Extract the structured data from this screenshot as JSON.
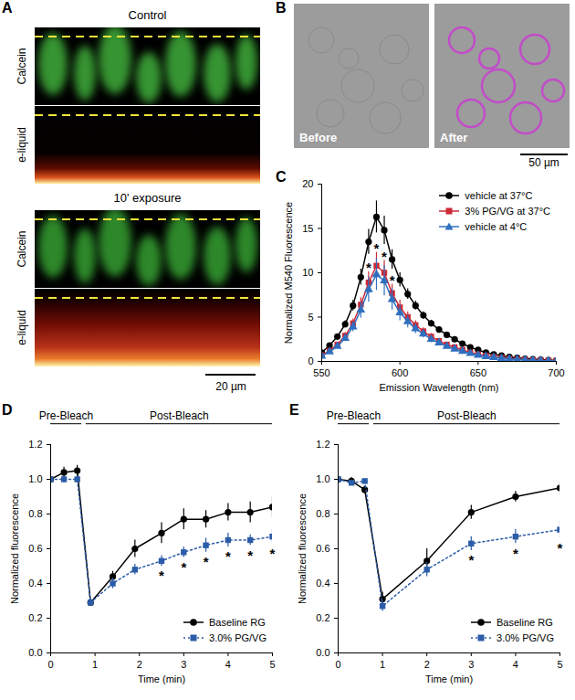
{
  "chart_data": [
    {
      "panel": "C",
      "type": "line",
      "x_label": "Emission Wavelength (nm)",
      "y_label": "Normalized M540 Fluorescence",
      "x": [
        550,
        555,
        560,
        565,
        570,
        575,
        580,
        585,
        590,
        595,
        600,
        605,
        610,
        615,
        620,
        625,
        630,
        635,
        640,
        645,
        650,
        655,
        660,
        665,
        670,
        675,
        680,
        685,
        690,
        695,
        700
      ],
      "xlim": [
        550,
        700
      ],
      "xticks": [
        550,
        600,
        650,
        700
      ],
      "ylim": [
        0,
        20
      ],
      "yticks": [
        0,
        5,
        10,
        15,
        20
      ],
      "legend": "top-right",
      "series": [
        {
          "name": "vehicle at 37°C",
          "color": "#000000",
          "marker": "circle",
          "line_style": "solid",
          "values": [
            1.0,
            1.8,
            2.8,
            4.2,
            6.3,
            9.5,
            13.5,
            16.3,
            14.8,
            11.5,
            9.2,
            7.6,
            6.3,
            5.2,
            4.3,
            3.6,
            3.0,
            2.5,
            2.0,
            1.6,
            1.3,
            1.0,
            0.8,
            0.65,
            0.5,
            0.4,
            0.3,
            0.25,
            0.2,
            0.15,
            0.1
          ],
          "errors": [
            0.15,
            0.2,
            0.3,
            0.4,
            0.6,
            0.9,
            1.4,
            1.8,
            1.6,
            1.1,
            0.8,
            0.6,
            0.5,
            0.4,
            0.35,
            0.3,
            0.25,
            0.2,
            0.2,
            0.15,
            0.12,
            0.1,
            0.1,
            0.08,
            0.07,
            0.06,
            0.05,
            0.05,
            0.04,
            0.04,
            0.03
          ]
        },
        {
          "name": "3% PG/VG at 37°C",
          "color": "#cc2936",
          "marker": "square",
          "line_style": "solid",
          "values": [
            0.7,
            1.2,
            1.9,
            2.9,
            4.3,
            6.4,
            8.9,
            10.8,
            10.0,
            7.7,
            6.1,
            5.0,
            4.1,
            3.4,
            2.8,
            2.3,
            1.9,
            1.6,
            1.3,
            1.0,
            0.8,
            0.65,
            0.5,
            0.4,
            0.3,
            0.25,
            0.2,
            0.15,
            0.12,
            0.1,
            0.08
          ],
          "errors": [
            0.1,
            0.15,
            0.25,
            0.35,
            0.5,
            0.8,
            1.2,
            1.5,
            1.4,
            1.0,
            0.8,
            0.6,
            0.5,
            0.4,
            0.35,
            0.3,
            0.25,
            0.2,
            0.18,
            0.15,
            0.12,
            0.1,
            0.08,
            0.07,
            0.06,
            0.05,
            0.04,
            0.04,
            0.03,
            0.03,
            0.03
          ],
          "annotations": [
            {
              "x": 580,
              "text": "*"
            },
            {
              "x": 585,
              "text": "*"
            },
            {
              "x": 590,
              "text": "*"
            },
            {
              "x": 595,
              "text": "*"
            }
          ]
        },
        {
          "name": "vehicle at 4°C",
          "color": "#2f6fbf",
          "marker": "triangle",
          "line_style": "solid",
          "values": [
            0.6,
            1.1,
            1.7,
            2.6,
            3.9,
            5.8,
            8.1,
            9.8,
            9.1,
            7.0,
            5.5,
            4.5,
            3.7,
            3.1,
            2.5,
            2.1,
            1.7,
            1.4,
            1.15,
            0.9,
            0.7,
            0.55,
            0.45,
            0.35,
            0.28,
            0.22,
            0.18,
            0.14,
            0.1,
            0.08,
            0.06
          ],
          "errors": [
            0.1,
            0.15,
            0.25,
            0.35,
            0.55,
            0.9,
            1.4,
            1.8,
            1.7,
            1.2,
            0.9,
            0.7,
            0.55,
            0.45,
            0.38,
            0.3,
            0.25,
            0.2,
            0.18,
            0.15,
            0.12,
            0.1,
            0.08,
            0.07,
            0.06,
            0.05,
            0.04,
            0.04,
            0.03,
            0.03,
            0.03
          ]
        }
      ]
    },
    {
      "panel": "D",
      "type": "line",
      "x_label": "Time (min)",
      "y_label": "Normalized fluorescence",
      "phases": [
        {
          "label": "Pre-Bleach",
          "start": 0,
          "end": 0.7
        },
        {
          "label": "Post-Bleach",
          "start": 0.8,
          "end": 5
        }
      ],
      "x": [
        0,
        0.3,
        0.6,
        0.9,
        1.4,
        1.9,
        2.5,
        3,
        3.5,
        4,
        4.5,
        5
      ],
      "xlim": [
        0,
        5
      ],
      "xticks": [
        0,
        1,
        2,
        3,
        4,
        5
      ],
      "ylim": [
        0,
        1.2
      ],
      "yticks": [
        {
          "value": 0,
          "label": "0.0"
        },
        0.2,
        0.4,
        0.6,
        0.8,
        {
          "value": 1,
          "label": "1.0"
        },
        1.2
      ],
      "legend": "bottom-right",
      "series": [
        {
          "name": "Baseline RG",
          "color": "#000000",
          "marker": "circle",
          "line_style": "solid",
          "values": [
            1.0,
            1.04,
            1.05,
            0.29,
            0.44,
            0.6,
            0.69,
            0.77,
            0.77,
            0.81,
            0.81,
            0.84
          ],
          "errors": [
            0.01,
            0.03,
            0.03,
            0.02,
            0.03,
            0.05,
            0.06,
            0.06,
            0.05,
            0.05,
            0.06,
            0.06
          ]
        },
        {
          "name": "3.0% PG/VG",
          "color": "#2b5ca8",
          "marker": "square",
          "line_style": "dotted",
          "values": [
            1.0,
            1.0,
            1.0,
            0.29,
            0.4,
            0.48,
            0.53,
            0.58,
            0.62,
            0.65,
            0.65,
            0.67
          ],
          "errors": [
            0.01,
            0.02,
            0.02,
            0.02,
            0.03,
            0.03,
            0.03,
            0.03,
            0.04,
            0.04,
            0.03,
            0.04
          ],
          "annotations": [
            {
              "x": 2.5,
              "text": "*"
            },
            {
              "x": 3,
              "text": "*"
            },
            {
              "x": 3.5,
              "text": "*"
            },
            {
              "x": 4,
              "text": "*"
            },
            {
              "x": 4.5,
              "text": "*"
            },
            {
              "x": 5,
              "text": "*"
            }
          ]
        }
      ]
    },
    {
      "panel": "E",
      "type": "line",
      "x_label": "Time (min)",
      "y_label": "Normalized fluorescence",
      "phases": [
        {
          "label": "Pre-Bleach",
          "start": 0,
          "end": 0.7
        },
        {
          "label": "Post-Bleach",
          "start": 0.8,
          "end": 5
        }
      ],
      "x": [
        0,
        0.3,
        0.6,
        1,
        2,
        3,
        4,
        5
      ],
      "xlim": [
        0,
        5
      ],
      "xticks": [
        0,
        1,
        2,
        3,
        4,
        5
      ],
      "ylim": [
        0,
        1.2
      ],
      "yticks": [
        {
          "value": 0,
          "label": "0.0"
        },
        0.2,
        0.4,
        0.6,
        0.8,
        {
          "value": 1,
          "label": "1.0"
        },
        1.2
      ],
      "legend": "bottom-right",
      "series": [
        {
          "name": "Baseline RG",
          "color": "#000000",
          "marker": "circle",
          "line_style": "solid",
          "values": [
            1.0,
            0.99,
            0.94,
            0.31,
            0.53,
            0.81,
            0.9,
            0.95
          ],
          "errors": [
            0.01,
            0.02,
            0.02,
            0.04,
            0.07,
            0.04,
            0.03,
            0.04
          ]
        },
        {
          "name": "3.0% PG/VG",
          "color": "#2b5ca8",
          "marker": "square",
          "line_style": "dotted",
          "values": [
            1.0,
            0.98,
            0.99,
            0.27,
            0.48,
            0.63,
            0.67,
            0.71
          ],
          "errors": [
            0.01,
            0.01,
            0.01,
            0.03,
            0.04,
            0.04,
            0.04,
            0.05
          ],
          "annotations": [
            {
              "x": 3,
              "text": "*"
            },
            {
              "x": 4,
              "text": "*"
            },
            {
              "x": 5,
              "text": "*"
            }
          ]
        }
      ]
    }
  ],
  "images": [
    {
      "panel": "A",
      "sections": [
        {
          "title": "Control",
          "rows": [
            "Calcein",
            "e-liquid"
          ]
        },
        {
          "title": "10' exposure",
          "rows": [
            "Calcein",
            "e-liquid"
          ]
        }
      ],
      "scale_bar": "20 µm"
    },
    {
      "panel": "B",
      "images": [
        "Before",
        "After"
      ],
      "scale_bar": "50 µm"
    }
  ]
}
